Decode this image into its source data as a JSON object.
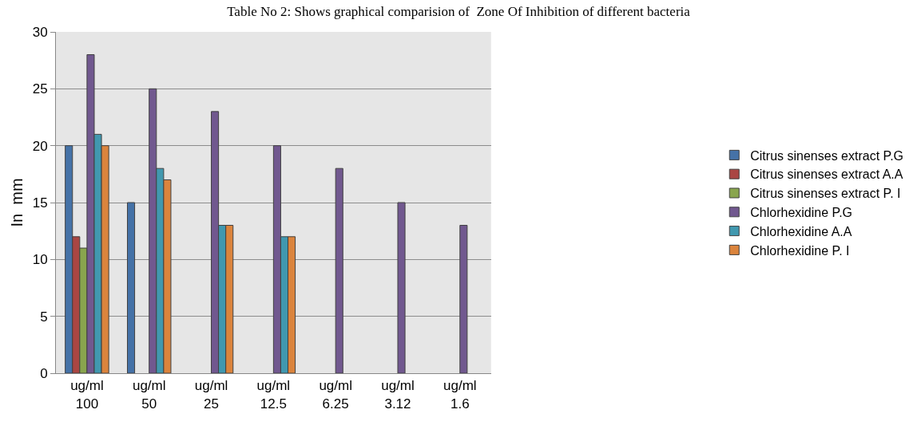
{
  "chart_data": {
    "type": "bar",
    "title": "Table No 2: Shows graphical comparision of  Zone Of Inhibition of different bacteria",
    "ylabel": "In  mm",
    "categories": [
      "ug/ml\n100",
      "ug/ml\n50",
      "ug/ml\n25",
      "ug/ml\n12.5",
      "ug/ml\n6.25",
      "ug/ml\n3.12",
      "ug/ml\n1.6"
    ],
    "series": [
      {
        "name": "Citrus sinenses extract P.G",
        "color": "#4572a7",
        "values": [
          20,
          15,
          null,
          null,
          null,
          null,
          null
        ]
      },
      {
        "name": "Citrus sinenses extract A.A",
        "color": "#aa4643",
        "values": [
          12,
          null,
          null,
          null,
          null,
          null,
          null
        ]
      },
      {
        "name": "Citrus sinenses extract P. I",
        "color": "#89a54e",
        "values": [
          11,
          null,
          null,
          null,
          null,
          null,
          null
        ]
      },
      {
        "name": "Chlorhexidine P.G",
        "color": "#71588f",
        "values": [
          28,
          25,
          23,
          20,
          18,
          15,
          13
        ]
      },
      {
        "name": "Chlorhexidine A.A",
        "color": "#4198af",
        "values": [
          21,
          18,
          13,
          12,
          null,
          null,
          null
        ]
      },
      {
        "name": "Chlorhexidine P. I",
        "color": "#db843d",
        "values": [
          20,
          17,
          13,
          12,
          null,
          null,
          null
        ]
      }
    ],
    "ylim": [
      0,
      30
    ],
    "yticks": [
      0,
      5,
      10,
      15,
      20,
      25,
      30
    ],
    "grid": "y",
    "legend": "right"
  }
}
